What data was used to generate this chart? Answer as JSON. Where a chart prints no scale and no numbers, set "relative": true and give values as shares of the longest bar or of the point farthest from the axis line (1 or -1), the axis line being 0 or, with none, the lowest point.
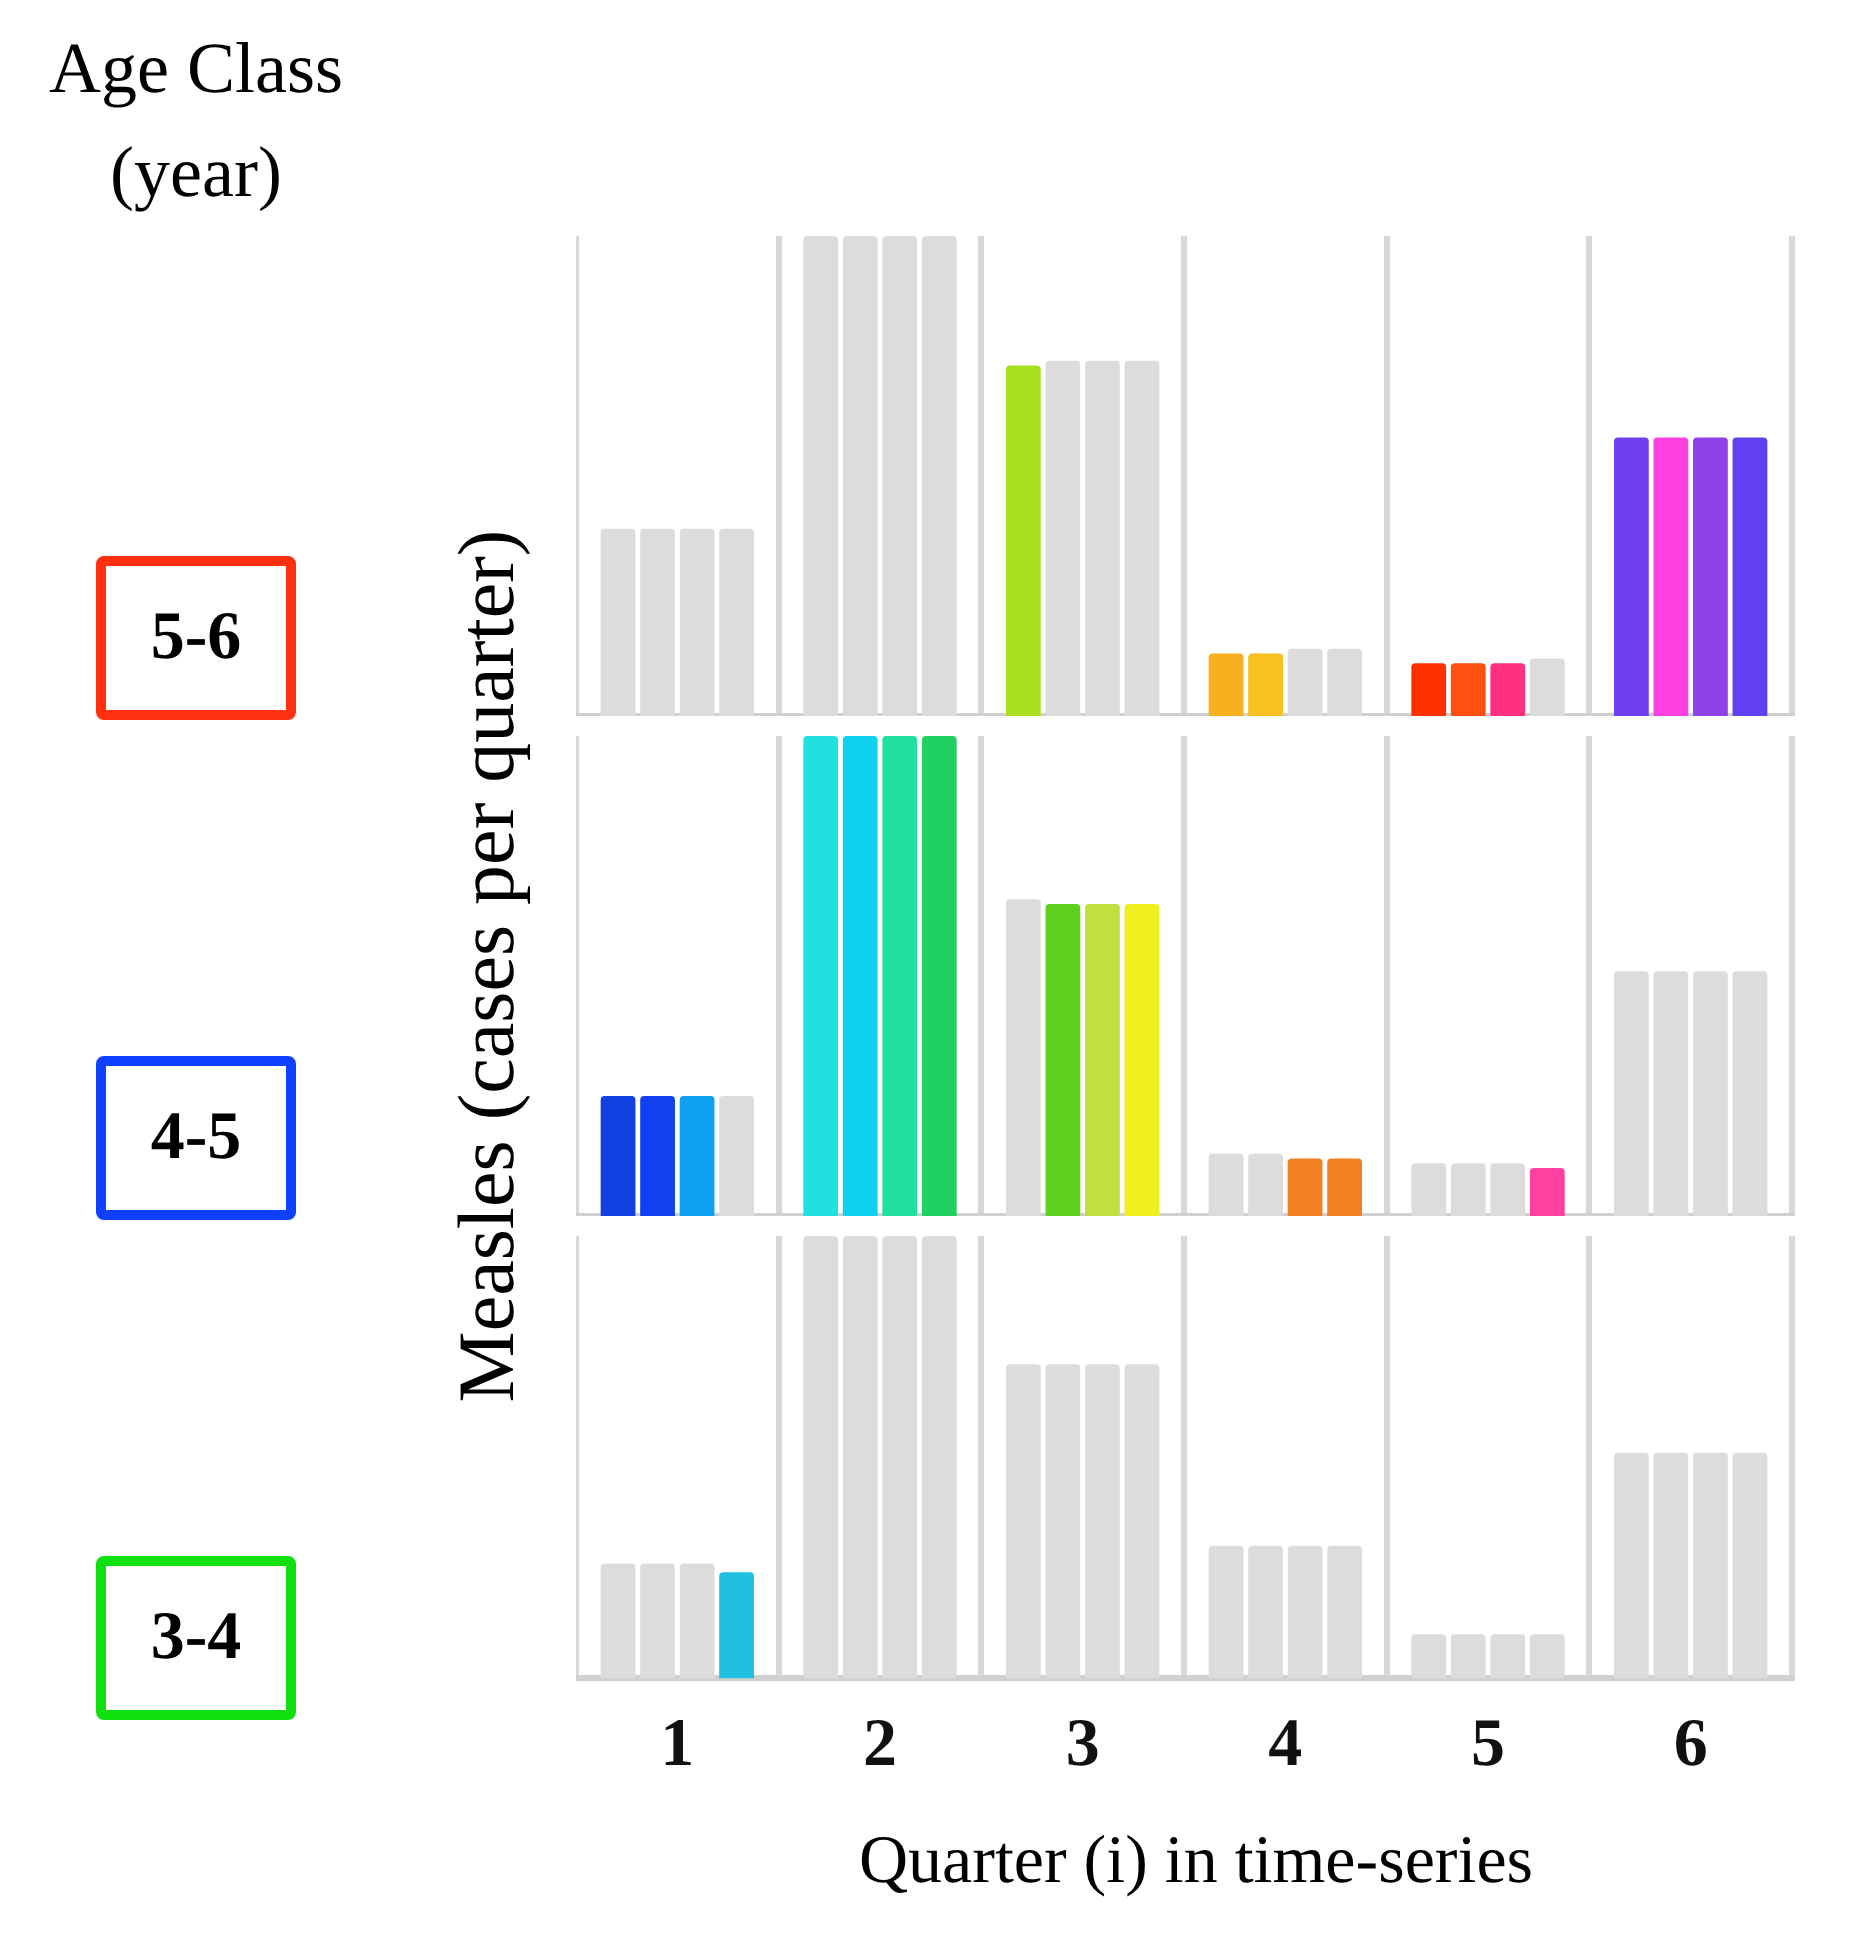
{
  "chart_data": [
    {
      "type": "bar",
      "title": "5-6",
      "annotations": [
        "Age Class (year)"
      ],
      "relative": true,
      "grid": "x",
      "tick_labels": false,
      "categories": [
        "1",
        "2",
        "3",
        "4",
        "5",
        "6"
      ],
      "series": [
        {
          "values": [
            0.39,
            1,
            0.73,
            0.13,
            0.11,
            0.58
          ],
          "colors": [
            "#dcdcdc",
            "#dcdcdc",
            "#a8e020",
            "#f8b020",
            "#ff3000",
            "#7040f0"
          ]
        },
        {
          "values": [
            0.39,
            1,
            0.74,
            0.13,
            0.11,
            0.58
          ],
          "colors": [
            "#dcdcdc",
            "#dcdcdc",
            "#dcdcdc",
            "#f8c020",
            "#ff5010",
            "#ff40e0"
          ]
        },
        {
          "values": [
            0.39,
            1,
            0.74,
            0.14,
            0.11,
            0.58
          ],
          "colors": [
            "#dcdcdc",
            "#dcdcdc",
            "#dcdcdc",
            "#dcdcdc",
            "#ff3080",
            "#9040e8"
          ]
        },
        {
          "values": [
            0.39,
            1,
            0.74,
            0.14,
            0.12,
            0.58
          ],
          "colors": [
            "#dcdcdc",
            "#dcdcdc",
            "#dcdcdc",
            "#dcdcdc",
            "#dcdcdc",
            "#6040f0"
          ]
        }
      ]
    },
    {
      "type": "bar",
      "title": "4-5",
      "ylabel": "Measles (cases per quarter)",
      "relative": true,
      "grid": "x",
      "tick_labels": false,
      "categories": [
        "1",
        "2",
        "3",
        "4",
        "5",
        "6"
      ],
      "series": [
        {
          "values": [
            0.25,
            1,
            0.66,
            0.13,
            0.11,
            0.51
          ],
          "colors": [
            "#1040e0",
            "#20e0e0",
            "#dcdcdc",
            "#dcdcdc",
            "#dcdcdc",
            "#dcdcdc"
          ]
        },
        {
          "values": [
            0.25,
            1,
            0.65,
            0.13,
            0.11,
            0.51
          ],
          "colors": [
            "#1040f0",
            "#10d0f0",
            "#60d020",
            "#dcdcdc",
            "#dcdcdc",
            "#dcdcdc"
          ]
        },
        {
          "values": [
            0.25,
            1,
            0.65,
            0.12,
            0.11,
            0.51
          ],
          "colors": [
            "#10a0f0",
            "#20e0a0",
            "#c0e040",
            "#f08020",
            "#dcdcdc",
            "#dcdcdc"
          ]
        },
        {
          "values": [
            0.25,
            1,
            0.65,
            0.12,
            0.1,
            0.51
          ],
          "colors": [
            "#dcdcdc",
            "#20d060",
            "#f0f020",
            "#f08020",
            "#ff40a0",
            "#dcdcdc"
          ]
        }
      ]
    },
    {
      "type": "bar",
      "title": "3-4",
      "xlabel": "Quarter (i) in time-series",
      "relative": true,
      "grid": "x",
      "tick_labels": "x",
      "categories": [
        "1",
        "2",
        "3",
        "4",
        "5",
        "6"
      ],
      "series": [
        {
          "values": [
            0.26,
            1,
            0.71,
            0.3,
            0.1,
            0.51
          ],
          "colors": [
            "#dcdcdc",
            "#dcdcdc",
            "#dcdcdc",
            "#dcdcdc",
            "#dcdcdc",
            "#dcdcdc"
          ]
        },
        {
          "values": [
            0.26,
            1,
            0.71,
            0.3,
            0.1,
            0.51
          ],
          "colors": [
            "#dcdcdc",
            "#dcdcdc",
            "#dcdcdc",
            "#dcdcdc",
            "#dcdcdc",
            "#dcdcdc"
          ]
        },
        {
          "values": [
            0.26,
            1,
            0.71,
            0.3,
            0.1,
            0.51
          ],
          "colors": [
            "#dcdcdc",
            "#dcdcdc",
            "#dcdcdc",
            "#dcdcdc",
            "#dcdcdc",
            "#dcdcdc"
          ]
        },
        {
          "values": [
            0.24,
            1,
            0.71,
            0.3,
            0.1,
            0.51
          ],
          "colors": [
            "#20c0e0",
            "#dcdcdc",
            "#dcdcdc",
            "#dcdcdc",
            "#dcdcdc",
            "#dcdcdc"
          ]
        }
      ]
    }
  ]
}
